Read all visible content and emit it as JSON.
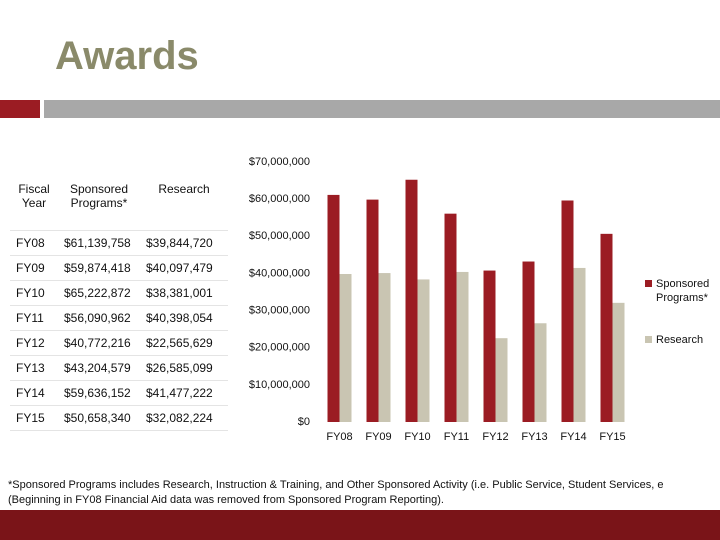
{
  "title": "Awards",
  "table": {
    "header": [
      "Fiscal Year",
      "Sponsored Programs*",
      "Research"
    ],
    "rows": [
      [
        "FY08",
        "$61,139,758",
        "$39,844,720"
      ],
      [
        "FY09",
        "$59,874,418",
        "$40,097,479"
      ],
      [
        "FY10",
        "$65,222,872",
        "$38,381,001"
      ],
      [
        "FY11",
        "$56,090,962",
        "$40,398,054"
      ],
      [
        "FY12",
        "$40,772,216",
        "$22,565,629"
      ],
      [
        "FY13",
        "$43,204,579",
        "$26,585,099"
      ],
      [
        "FY14",
        "$59,636,152",
        "$41,477,222"
      ],
      [
        "FY15",
        "$50,658,340",
        "$32,082,224"
      ]
    ]
  },
  "chart_data": {
    "type": "bar",
    "categories": [
      "FY08",
      "FY09",
      "FY10",
      "FY11",
      "FY12",
      "FY13",
      "FY14",
      "FY15"
    ],
    "series": [
      {
        "name": "Sponsored Programs*",
        "color": "#9b1c23",
        "values": [
          61139758,
          59874418,
          65222872,
          56090962,
          40772216,
          43204579,
          59636152,
          50658340
        ]
      },
      {
        "name": "Research",
        "color": "#c9c5b2",
        "values": [
          39844720,
          40097479,
          38381001,
          40398054,
          22565629,
          26585099,
          41477222,
          32082224
        ]
      }
    ],
    "ylim": [
      0,
      70000000
    ],
    "yticks": [
      {
        "value": 0,
        "label": "$0"
      },
      {
        "value": 10000000,
        "label": "$10,000,000"
      },
      {
        "value": 20000000,
        "label": "$20,000,000"
      },
      {
        "value": 30000000,
        "label": "$30,000,000"
      },
      {
        "value": 40000000,
        "label": "$40,000,000"
      },
      {
        "value": 50000000,
        "label": "$50,000,000"
      },
      {
        "value": 60000000,
        "label": "$60,000,000"
      },
      {
        "value": 70000000,
        "label": "$70,000,000"
      }
    ],
    "legend": "right"
  },
  "footnote": [
    "*Sponsored Programs includes Research, Instruction & Training, and Other Sponsored Activity (i.e. Public Service, Student Services, e",
    "(Beginning in FY08 Financial Aid data was removed from Sponsored Program Reporting)."
  ]
}
